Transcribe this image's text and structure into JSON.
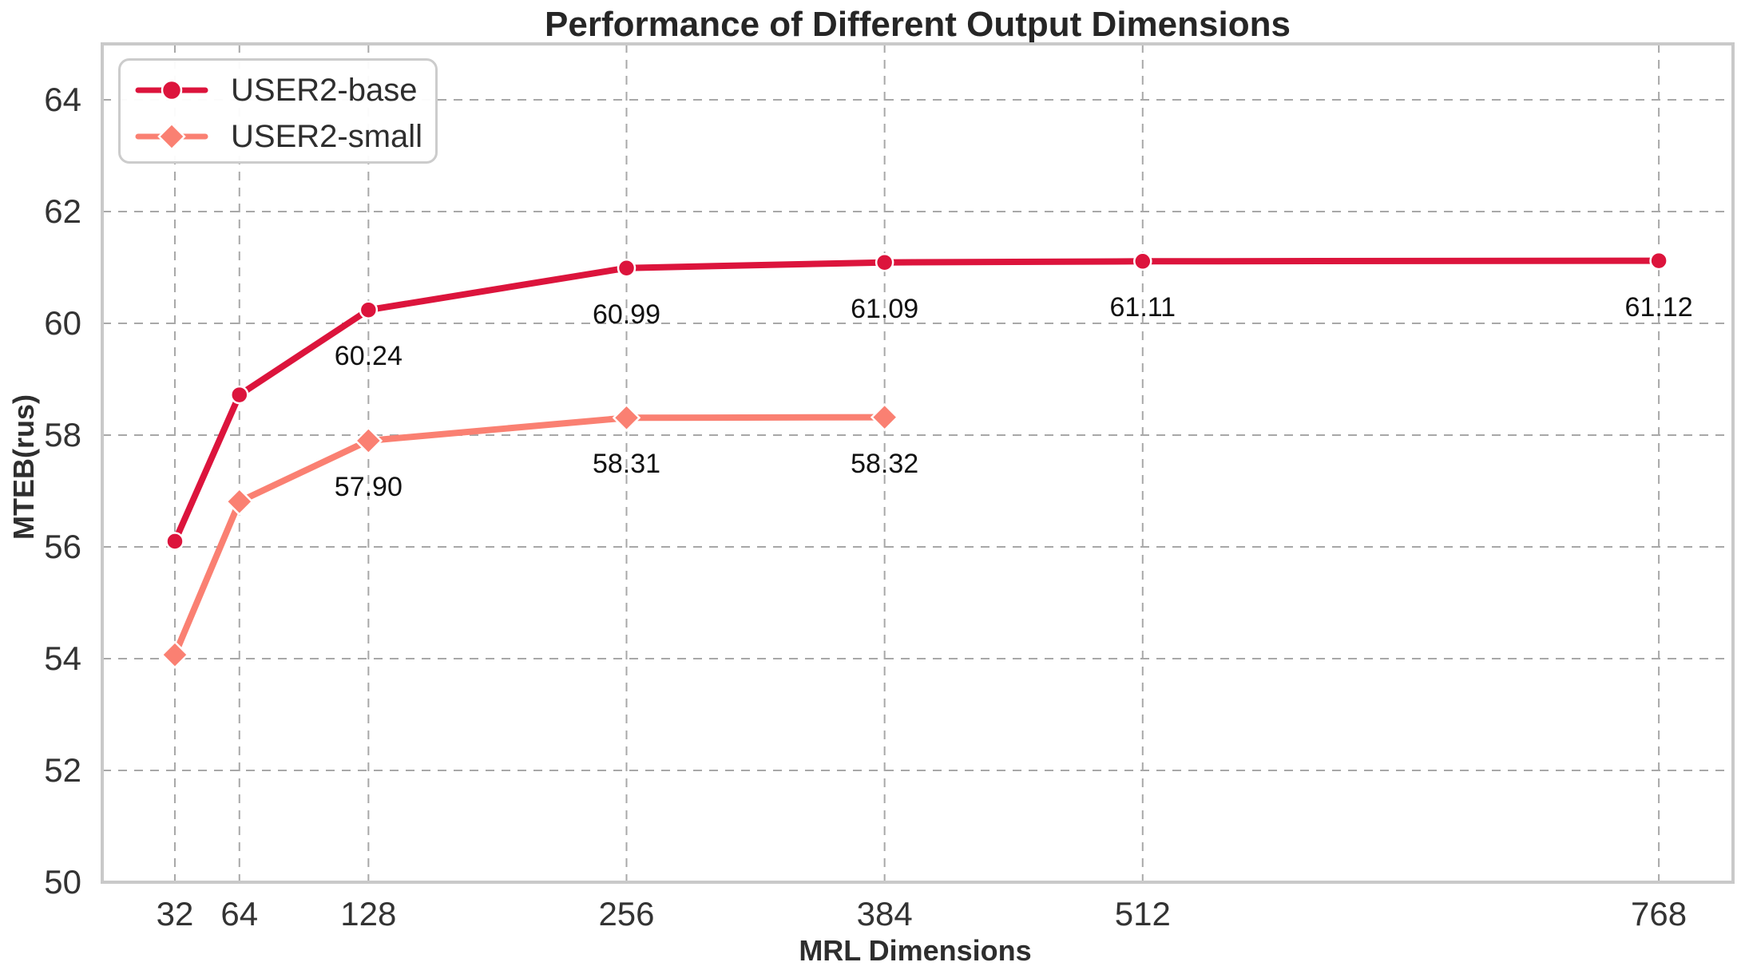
{
  "title": "Performance of Different Output Dimensions",
  "colors": {
    "series_base": "#DC143C",
    "series_small": "#FA8072",
    "grid": "#A8A8A8",
    "spine": "#C9C9C9",
    "marker_edge": "#FFFFFF",
    "text": "#333333",
    "annotation": "#111111"
  },
  "legend": {
    "items": [
      {
        "label": "USER2-base",
        "marker": "circle"
      },
      {
        "label": "USER2-small",
        "marker": "diamond"
      }
    ]
  },
  "chart_data": {
    "type": "line",
    "title": "Performance of Different Output Dimensions",
    "xlabel": "MRL Dimensions",
    "ylabel": "MTEB(rus)",
    "x_tick_labels": [
      "32",
      "64",
      "128",
      "256",
      "384",
      "512",
      "768"
    ],
    "x_tick_values": [
      32,
      64,
      128,
      256,
      384,
      512,
      768
    ],
    "y_tick_labels": [
      "50",
      "52",
      "54",
      "56",
      "58",
      "60",
      "62",
      "64"
    ],
    "y_tick_values": [
      50,
      52,
      54,
      56,
      58,
      60,
      62,
      64
    ],
    "xlim": [
      -4.04,
      804.8
    ],
    "ylim": [
      50,
      65.0
    ],
    "grid": true,
    "grid_style": "dashed",
    "legend_position": "upper left",
    "series": [
      {
        "name": "USER2-base",
        "color": "#DC143C",
        "marker": "circle",
        "x": [
          32,
          64,
          128,
          256,
          384,
          512,
          768
        ],
        "y": [
          56.1,
          58.72,
          60.24,
          60.99,
          61.09,
          61.11,
          61.12
        ],
        "point_labels": [
          "",
          "",
          "60.24",
          "60.99",
          "61.09",
          "61.11",
          "61.12"
        ]
      },
      {
        "name": "USER2-small",
        "color": "#FA8072",
        "marker": "diamond",
        "x": [
          32,
          64,
          128,
          256,
          384
        ],
        "y": [
          54.07,
          56.81,
          57.9,
          58.31,
          58.32
        ],
        "point_labels": [
          "",
          "",
          "57.90",
          "58.31",
          "58.32"
        ]
      }
    ]
  }
}
